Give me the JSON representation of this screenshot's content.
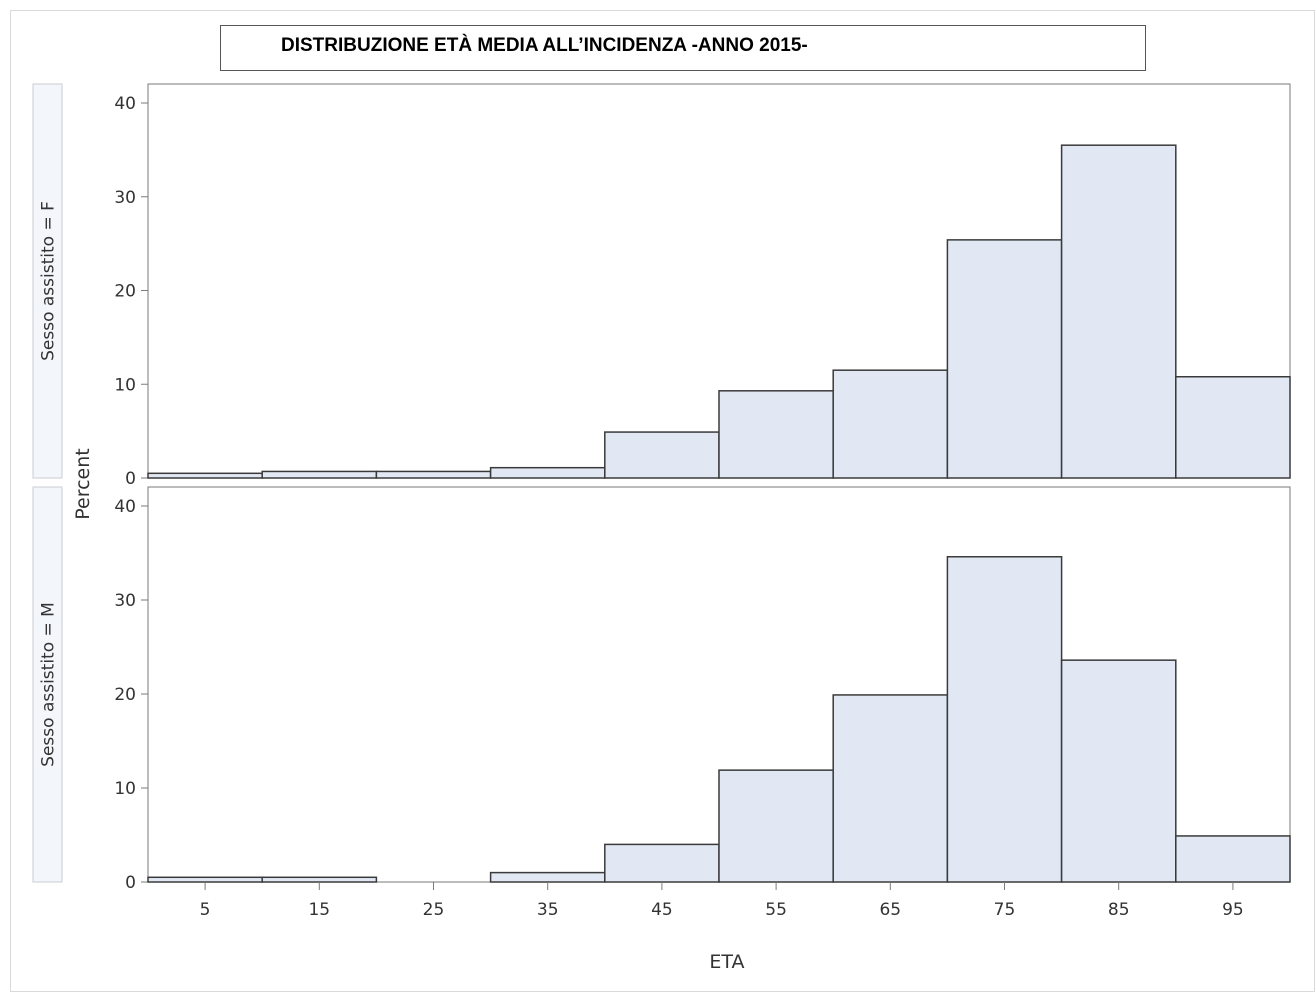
{
  "title": "DISTRIBUZIONE ETÀ MEDIA ALL’INCIDENZA  -ANNO 2015-",
  "colors": {
    "bar_fill": "#e2e8f3",
    "bar_stroke": "#3a3a3a",
    "axis": "#7a7a7a",
    "panel_strip_bg": "#f3f6fb",
    "panel_strip_border": "#c9ced6"
  },
  "chart_data": {
    "type": "bar",
    "xlabel": "ETA",
    "ylabel": "Percent",
    "x_ticks": [
      "5",
      "15",
      "25",
      "35",
      "45",
      "55",
      "65",
      "75",
      "85",
      "95"
    ],
    "bin_edges": [
      0,
      10,
      20,
      30,
      40,
      50,
      60,
      70,
      80,
      90,
      100
    ],
    "xlim": [
      0,
      100
    ],
    "ylim": [
      0,
      40
    ],
    "y_ticks": [
      "0",
      "10",
      "20",
      "30",
      "40"
    ],
    "grid": false,
    "panels": [
      {
        "label": "Sesso assistito = F",
        "values": [
          0.5,
          0.7,
          0.7,
          1.1,
          4.9,
          9.3,
          11.5,
          25.4,
          35.5,
          10.8
        ]
      },
      {
        "label": "Sesso assistito = M",
        "values": [
          0.5,
          0.5,
          0,
          1.0,
          4.0,
          11.9,
          19.9,
          34.6,
          23.6,
          4.9
        ]
      }
    ]
  }
}
